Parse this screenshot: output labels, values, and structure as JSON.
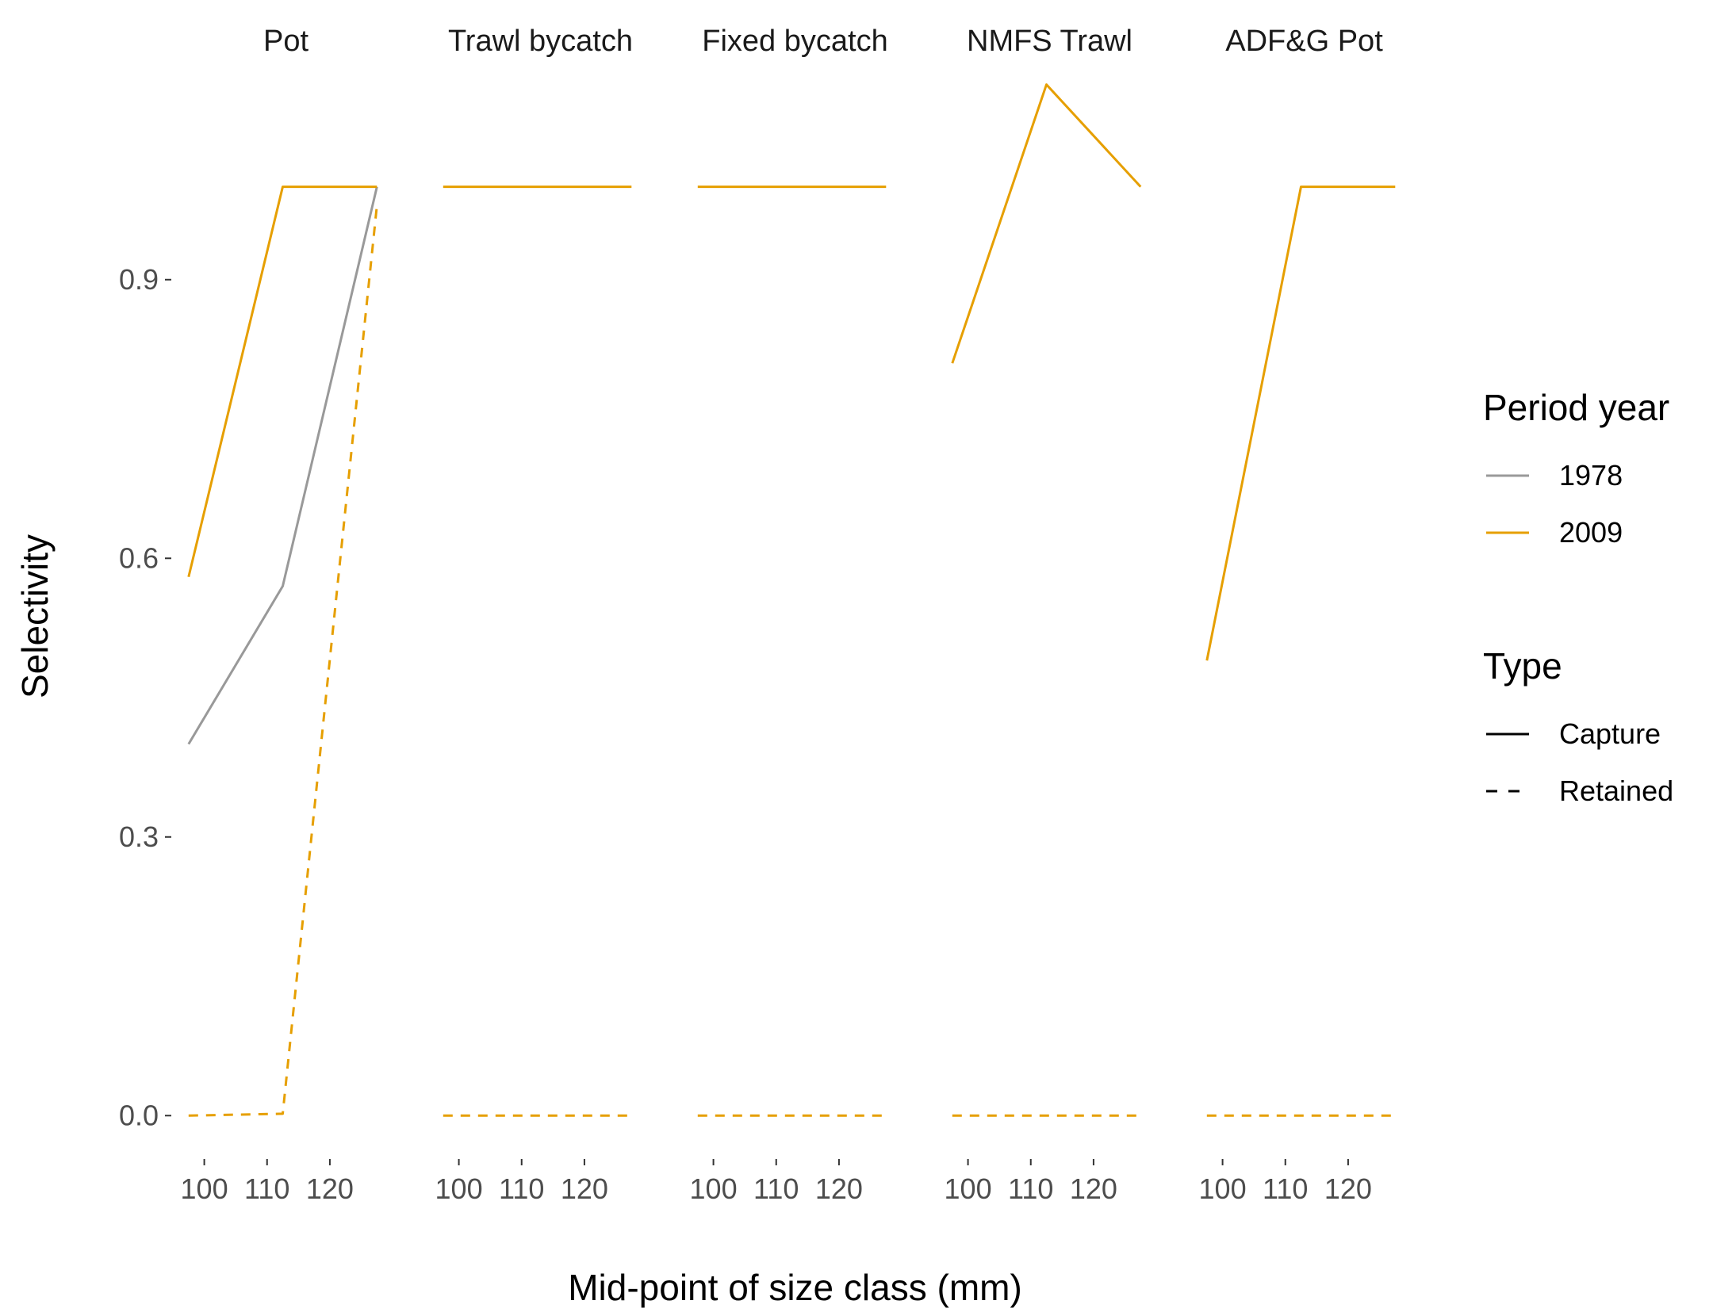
{
  "chart_data": {
    "type": "line",
    "xlabel": "Mid-point of size class (mm)",
    "ylabel": "Selectivity",
    "ylim": [
      -0.045,
      1.12
    ],
    "xlim": [
      95,
      131
    ],
    "x_ticks": [
      100,
      110,
      120
    ],
    "y_ticks": [
      0.0,
      0.3,
      0.6,
      0.9
    ],
    "y_tick_labels": [
      "0.0",
      "0.3",
      "0.6",
      "0.9"
    ],
    "x": [
      97.5,
      112.5,
      127.5
    ],
    "grid": false,
    "legend": {
      "position": "right",
      "groups": [
        {
          "title": "Period year",
          "entries": [
            {
              "label": "1978",
              "color": "#999999",
              "dash": "solid"
            },
            {
              "label": "2009",
              "color": "#E69F00",
              "dash": "solid"
            }
          ]
        },
        {
          "title": "Type",
          "entries": [
            {
              "label": "Capture",
              "color": "#000000",
              "dash": "solid"
            },
            {
              "label": "Retained",
              "color": "#000000",
              "dash": "dashed"
            }
          ]
        }
      ]
    },
    "facets": [
      {
        "label": "Pot",
        "series": [
          {
            "period": "1978",
            "type": "Capture",
            "color": "#999999",
            "dash": "solid",
            "values": [
              0.4,
              0.57,
              1.0
            ]
          },
          {
            "period": "2009",
            "type": "Capture",
            "color": "#E69F00",
            "dash": "solid",
            "values": [
              0.58,
              1.0,
              1.0
            ]
          },
          {
            "period": "2009",
            "type": "Retained",
            "color": "#E69F00",
            "dash": "dashed",
            "values": [
              0.0,
              0.002,
              0.98
            ]
          }
        ]
      },
      {
        "label": "Trawl bycatch",
        "series": [
          {
            "period": "2009",
            "type": "Capture",
            "color": "#E69F00",
            "dash": "solid",
            "values": [
              1.0,
              1.0,
              1.0
            ]
          },
          {
            "period": "2009",
            "type": "Retained",
            "color": "#E69F00",
            "dash": "dashed",
            "values": [
              0.0,
              0.0,
              0.0
            ]
          }
        ]
      },
      {
        "label": "Fixed bycatch",
        "series": [
          {
            "period": "2009",
            "type": "Capture",
            "color": "#E69F00",
            "dash": "solid",
            "values": [
              1.0,
              1.0,
              1.0
            ]
          },
          {
            "period": "2009",
            "type": "Retained",
            "color": "#E69F00",
            "dash": "dashed",
            "values": [
              0.0,
              0.0,
              0.0
            ]
          }
        ]
      },
      {
        "label": "NMFS Trawl",
        "series": [
          {
            "period": "2009",
            "type": "Capture",
            "color": "#E69F00",
            "dash": "solid",
            "values": [
              0.81,
              1.11,
              1.0
            ]
          },
          {
            "period": "2009",
            "type": "Retained",
            "color": "#E69F00",
            "dash": "dashed",
            "values": [
              0.0,
              0.0,
              0.0
            ]
          }
        ]
      },
      {
        "label": "ADF&G Pot",
        "series": [
          {
            "period": "2009",
            "type": "Capture",
            "color": "#E69F00",
            "dash": "solid",
            "values": [
              0.49,
              1.0,
              1.0
            ]
          },
          {
            "period": "2009",
            "type": "Retained",
            "color": "#E69F00",
            "dash": "dashed",
            "values": [
              0.0,
              0.0,
              0.0
            ]
          }
        ]
      }
    ]
  }
}
